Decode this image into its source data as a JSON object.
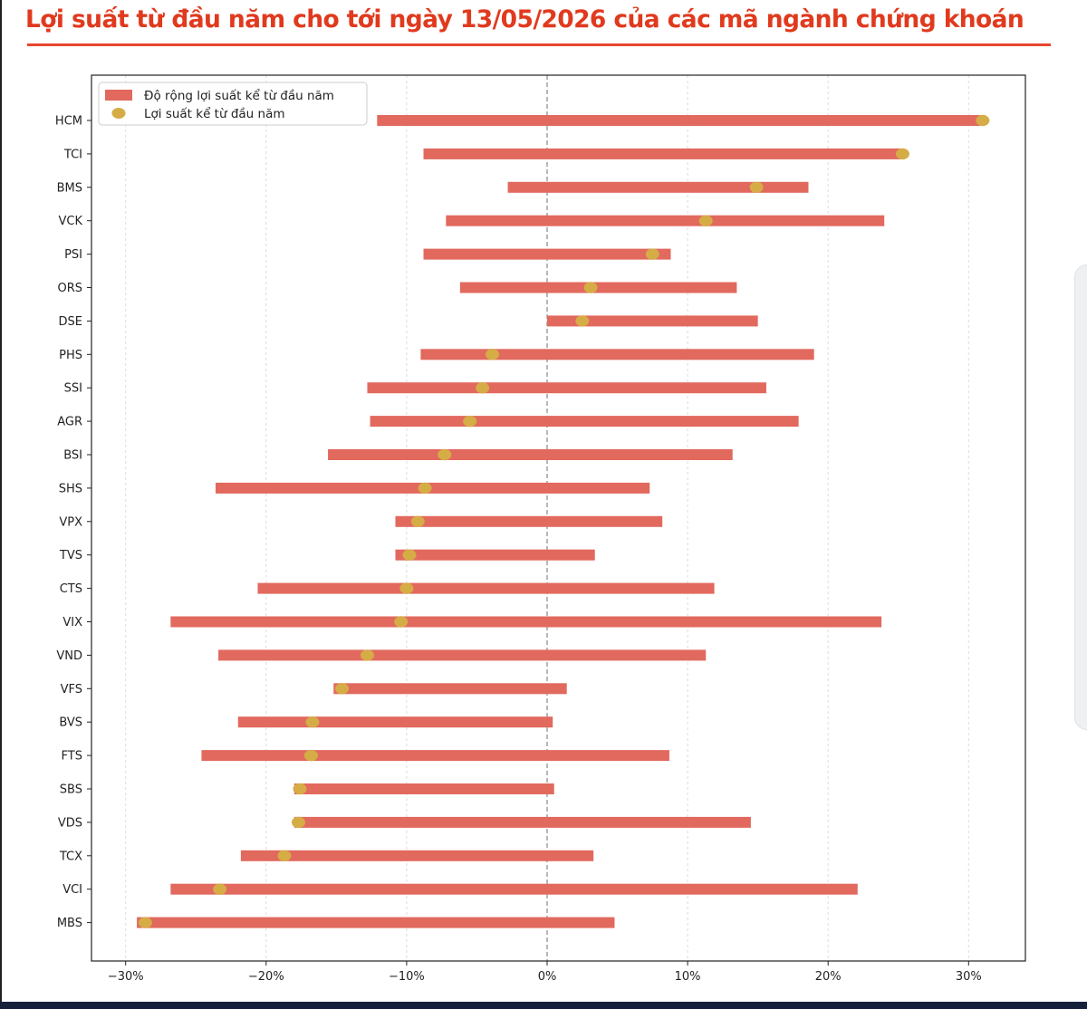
{
  "page": {
    "title": "Lợi suất từ đầu năm cho tới ngày 13/05/2026 của các mã ngành chứng khoán"
  },
  "colors": {
    "title": "#e03a1e",
    "bar": "#e2695e",
    "dot": "#d5ac45",
    "zero_line": "#888888",
    "grid": "#dddddd",
    "axis": "#222222"
  },
  "chart_data": {
    "type": "range-dot",
    "title": "",
    "xlabel": "",
    "ylabel": "",
    "xlim": [
      -0.305,
      0.34
    ],
    "x_ticks": [
      -0.3,
      -0.2,
      -0.1,
      0,
      0.1,
      0.2,
      0.3
    ],
    "x_tick_labels": [
      "−30%",
      "−20%",
      "−10%",
      "0%",
      "10%",
      "20%",
      "30%"
    ],
    "grid": "vertical, dashed",
    "zero_line": true,
    "legend": {
      "placement": "top-left",
      "entries": [
        {
          "label": "Độ rộng lợi suất kể từ đầu năm",
          "kind": "bar"
        },
        {
          "label": "Lợi suất kể từ đầu năm",
          "kind": "dot"
        }
      ]
    },
    "categories": [
      "HCM",
      "TCI",
      "BMS",
      "VCK",
      "PSI",
      "ORS",
      "DSE",
      "PHS",
      "SSI",
      "AGR",
      "BSI",
      "SHS",
      "VPX",
      "TVS",
      "CTS",
      "VIX",
      "VND",
      "VFS",
      "BVS",
      "FTS",
      "SBS",
      "VDS",
      "TCX",
      "VCI",
      "MBS"
    ],
    "range_min": [
      -0.121,
      -0.088,
      -0.028,
      -0.072,
      -0.088,
      -0.062,
      0.0,
      -0.09,
      -0.128,
      -0.126,
      -0.156,
      -0.236,
      -0.108,
      -0.108,
      -0.206,
      -0.268,
      -0.234,
      -0.152,
      -0.22,
      -0.246,
      -0.18,
      -0.18,
      -0.218,
      -0.268,
      -0.292
    ],
    "range_max": [
      0.308,
      0.252,
      0.186,
      0.24,
      0.088,
      0.135,
      0.15,
      0.19,
      0.156,
      0.179,
      0.132,
      0.073,
      0.082,
      0.034,
      0.119,
      0.238,
      0.113,
      0.014,
      0.004,
      0.087,
      0.005,
      0.145,
      0.033,
      0.221,
      0.048
    ],
    "ytd_return": [
      0.31,
      0.253,
      0.149,
      0.113,
      0.075,
      0.031,
      0.025,
      -0.039,
      -0.046,
      -0.055,
      -0.073,
      -0.087,
      -0.092,
      -0.098,
      -0.1,
      -0.104,
      -0.128,
      -0.146,
      -0.167,
      -0.168,
      -0.176,
      -0.177,
      -0.187,
      -0.233,
      -0.286
    ]
  }
}
